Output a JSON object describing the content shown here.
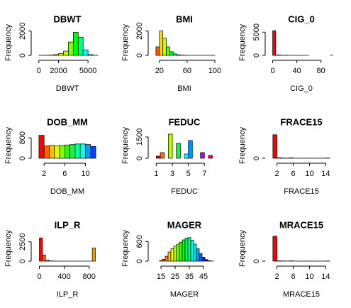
{
  "chart_data": [
    {
      "type": "histogram",
      "title": "DBWT",
      "xlabel": "DBWT",
      "ylabel": "Frequency",
      "bins": [
        0,
        500,
        1000,
        1500,
        2000,
        2500,
        3000,
        3500,
        4000,
        4500,
        5000,
        5500,
        6000
      ],
      "counts": [
        5,
        10,
        20,
        60,
        150,
        350,
        1100,
        1900,
        1500,
        450,
        60,
        10
      ],
      "colors": [
        "#FF0000",
        "#FF4000",
        "#FF8000",
        "#FFBF00",
        "#FFFF00",
        "#BFFF00",
        "#80FF00",
        "#00FF00",
        "#00FF80",
        "#00FFFF",
        "#0080FF",
        "#0000FF"
      ],
      "xlim": [
        -200,
        6000
      ],
      "xticks": [
        0,
        2000,
        5000
      ],
      "ylim": [
        0,
        2100
      ],
      "yticks": [
        0,
        2000
      ]
    },
    {
      "type": "histogram",
      "title": "BMI",
      "xlabel": "BMI",
      "ylabel": "Frequency",
      "bins": [
        15,
        20,
        25,
        30,
        35,
        40,
        45,
        50,
        55,
        60,
        65,
        70,
        75,
        80,
        85,
        90,
        95,
        100
      ],
      "counts": [
        700,
        2000,
        1400,
        700,
        300,
        120,
        50,
        20,
        10,
        5,
        3,
        2,
        1,
        1,
        1,
        1,
        5
      ],
      "colors": [
        "#FF5A00",
        "#FFD700",
        "#C0FF00",
        "#60FF00",
        "#00FF20",
        "#00FF80",
        "#00FFE0",
        "#00C0FF",
        "#0060FF",
        "#0000FF",
        "#4000FF",
        "#A000FF",
        "#FF00FF",
        "#FF00C0",
        "#FF0080",
        "#FF0040",
        "#FF0020"
      ],
      "xlim": [
        12,
        100
      ],
      "xticks": [
        20,
        60,
        100
      ],
      "ylim": [
        0,
        2100
      ],
      "yticks": [
        0,
        2000
      ]
    },
    {
      "type": "histogram",
      "title": "CIG_0",
      "xlabel": "CIG_0",
      "ylabel": "Frequency",
      "bins": [
        0,
        5,
        10,
        15,
        20,
        25,
        30,
        35,
        40,
        45,
        50,
        55,
        60,
        65,
        70,
        75,
        80,
        85,
        90,
        95,
        100
      ],
      "counts": [
        5300,
        80,
        60,
        10,
        30,
        5,
        5,
        2,
        5,
        1,
        1,
        1,
        0,
        0,
        0,
        0,
        0,
        0,
        0,
        1
      ],
      "colors": [
        "#FF0000",
        "#FF4D00",
        "#FF9900",
        "#FFE600",
        "#CCFF00",
        "#80FF00",
        "#33FF00",
        "#00FF1A",
        "#00FF66",
        "#00FFB3",
        "#00FFFF",
        "#00B3FF",
        "#0066FF",
        "#001AFF",
        "#3300FF",
        "#8000FF",
        "#CC00FF",
        "#FF00E6",
        "#FF0099",
        "#FF004D"
      ],
      "xlim": [
        -3,
        98
      ],
      "xticks": [
        0,
        40,
        80
      ],
      "ylim": [
        0,
        5500
      ],
      "yticks": [
        0,
        5000
      ]
    },
    {
      "type": "histogram",
      "title": "DOB_MM",
      "xlabel": "DOB_MM",
      "ylabel": "Frequency",
      "bins": [
        1,
        2,
        3,
        4,
        5,
        6,
        7,
        8,
        9,
        10,
        11,
        12
      ],
      "counts": [
        900,
        480,
        500,
        480,
        500,
        520,
        540,
        560,
        560,
        540,
        460
      ],
      "colors": [
        "#FF0000",
        "#FF6000",
        "#FFC000",
        "#DFFF00",
        "#80FF00",
        "#20FF00",
        "#00FF40",
        "#00FFA0",
        "#00FFFF",
        "#00A0FF",
        "#0040FF"
      ],
      "xlim": [
        0.6,
        12.4
      ],
      "xticks": [
        2,
        6,
        10
      ],
      "ylim": [
        0,
        1000
      ],
      "yticks": [
        0,
        800
      ]
    },
    {
      "type": "histogram",
      "title": "FEDUC",
      "xlabel": "FEDUC",
      "ylabel": "Frequency",
      "bins": [
        1,
        1.5,
        2,
        2.5,
        3,
        3.5,
        4,
        4.5,
        5,
        5.5,
        6,
        6.5,
        7,
        7.5,
        8
      ],
      "counts": [
        150,
        400,
        0,
        1700,
        0,
        1050,
        0,
        300,
        1250,
        0,
        0,
        400,
        0,
        200
      ],
      "colors": [
        "#FF0000",
        "#FF6D00",
        "#FFDB00",
        "#B6FF00",
        "#49FF00",
        "#00FF24",
        "#00FF92",
        "#00FFFF",
        "#0092FF",
        "#0024FF",
        "#4900FF",
        "#B600FF",
        "#FF00DB",
        "#FF006D"
      ],
      "xlim": [
        0.7,
        8.3
      ],
      "xticks": [
        1,
        3,
        5,
        7
      ],
      "ylim": [
        0,
        1800
      ],
      "yticks": [
        0,
        1500
      ]
    },
    {
      "type": "histogram",
      "title": "FRACE15",
      "xlabel": "FRACE15",
      "ylabel": "Frequency",
      "bins": [
        1,
        2,
        3,
        4,
        5,
        6,
        7,
        8,
        9,
        10,
        11,
        12,
        13,
        14,
        15
      ],
      "counts": [
        1750,
        40,
        20,
        10,
        30,
        5,
        5,
        5,
        5,
        5,
        5,
        5,
        5,
        20
      ],
      "colors": [
        "#FF0000",
        "#FF6D00",
        "#FFDB00",
        "#B6FF00",
        "#49FF00",
        "#00FF24",
        "#00FF92",
        "#00FFFF",
        "#0092FF",
        "#0024FF",
        "#4900FF",
        "#B600FF",
        "#FF00DB",
        "#FF006D"
      ],
      "xlim": [
        0.5,
        15.5
      ],
      "xticks": [
        2,
        6,
        10,
        14
      ],
      "ylim": [
        0,
        1900
      ],
      "yticks": [
        0
      ]
    },
    {
      "type": "histogram",
      "title": "ILP_R",
      "xlabel": "ILP_R",
      "ylabel": "Frequency",
      "bins": [
        0,
        50,
        100,
        150,
        200,
        250,
        300,
        350,
        400,
        450,
        500,
        550,
        600,
        650,
        700,
        750,
        800,
        850,
        900
      ],
      "counts": [
        3000,
        800,
        150,
        40,
        20,
        10,
        5,
        5,
        5,
        5,
        2,
        2,
        2,
        2,
        2,
        2,
        2,
        1700
      ],
      "colors": [
        "#FF0000",
        "#FF5500",
        "#FFAA00",
        "#FFFF00",
        "#AAFF00",
        "#55FF00",
        "#00FF00",
        "#00FF55",
        "#00FFAA",
        "#00FFFF",
        "#00AAFF",
        "#0055FF",
        "#0000FF",
        "#5500FF",
        "#AA00FF",
        "#FF00FF",
        "#FF00AA",
        "#E6A000"
      ],
      "xlim": [
        -40,
        940
      ],
      "xticks": [
        0,
        400,
        800
      ],
      "ylim": [
        0,
        3300
      ],
      "yticks": [
        0,
        2500
      ]
    },
    {
      "type": "histogram",
      "title": "MAGER",
      "xlabel": "MAGER",
      "ylabel": "Frequency",
      "bins": [
        14,
        16,
        18,
        20,
        22,
        24,
        26,
        28,
        30,
        32,
        34,
        36,
        38,
        40,
        42,
        44,
        46,
        48,
        50,
        52
      ],
      "counts": [
        20,
        60,
        150,
        280,
        380,
        460,
        520,
        580,
        650,
        700,
        720,
        640,
        520,
        380,
        230,
        120,
        50,
        15,
        5
      ],
      "colors": [
        "#FF0000",
        "#FF4200",
        "#FF8400",
        "#FFC600",
        "#F6FF00",
        "#B4FF00",
        "#72FF00",
        "#30FF00",
        "#00FF12",
        "#00FF54",
        "#00FF96",
        "#00FFD8",
        "#00E4FF",
        "#00A2FF",
        "#0060FF",
        "#001EFF",
        "#2400FF",
        "#6600FF",
        "#A800FF"
      ],
      "xlim": [
        10,
        53
      ],
      "xticks": [
        15,
        25,
        35,
        45
      ],
      "ylim": [
        0,
        780
      ],
      "yticks": [
        0,
        600
      ]
    },
    {
      "type": "histogram",
      "title": "MRACE15",
      "xlabel": "MRACE15",
      "ylabel": "Frequency",
      "bins": [
        1,
        2,
        3,
        4,
        5,
        6,
        7,
        8,
        9,
        10,
        11,
        12,
        13,
        14,
        15
      ],
      "counts": [
        1900,
        30,
        15,
        10,
        25,
        5,
        5,
        5,
        5,
        5,
        5,
        5,
        5,
        15
      ],
      "colors": [
        "#FF0000",
        "#FF6D00",
        "#FFDB00",
        "#B6FF00",
        "#49FF00",
        "#00FF24",
        "#00FF92",
        "#00FFFF",
        "#0092FF",
        "#0024FF",
        "#4900FF",
        "#B600FF",
        "#FF00DB",
        "#FF006D"
      ],
      "xlim": [
        0.5,
        15.5
      ],
      "xticks": [
        2,
        6,
        10,
        14
      ],
      "ylim": [
        0,
        1950
      ],
      "yticks": [
        0
      ]
    }
  ]
}
